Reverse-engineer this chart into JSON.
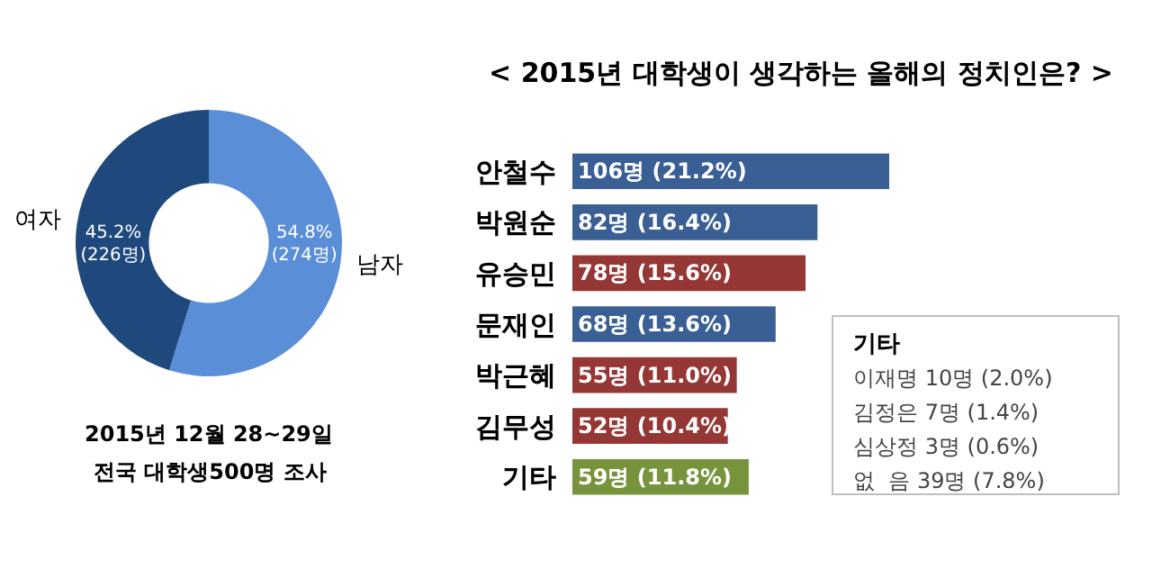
{
  "chart_data": [
    {
      "type": "donut",
      "categories": [
        "남자",
        "여자"
      ],
      "values": [
        54.8,
        45.2
      ],
      "colors": [
        "#5a8fd8",
        "#1f497d"
      ],
      "value_labels": [
        "54.8% (274명)",
        "45.2% (226명)"
      ],
      "annotations": [
        "2015년 12월 28~29일",
        "전국 대학생500명 조사"
      ]
    },
    {
      "type": "bar",
      "orientation": "horizontal",
      "title": "< 2015년 대학생이 생각하는 올해의 정치인은? >",
      "categories": [
        "안철수",
        "박원순",
        "유승민",
        "문재인",
        "박근혜",
        "김무성",
        "기타"
      ],
      "values": [
        106,
        82,
        78,
        68,
        55,
        52,
        59
      ],
      "colors": [
        "#3a5f94",
        "#3a5f94",
        "#953735",
        "#3a5f94",
        "#953735",
        "#953735",
        "#77933c"
      ],
      "value_labels": [
        "106명 (21.2%)",
        "82명 (16.4%)",
        "78명 (15.6%)",
        "68명 (13.6%)",
        "55명 (11.0%)",
        "52명 (10.4%)",
        "59명 (11.8%)"
      ],
      "xlim": [
        0,
        106
      ],
      "tick_labels": "y",
      "annotations": [
        "기타",
        "이재명 10명 (2.0%)",
        "김정은 7명 (1.4%)",
        "심상정 3명 (0.6%)",
        "없  음 39명 (7.8%)"
      ]
    }
  ]
}
